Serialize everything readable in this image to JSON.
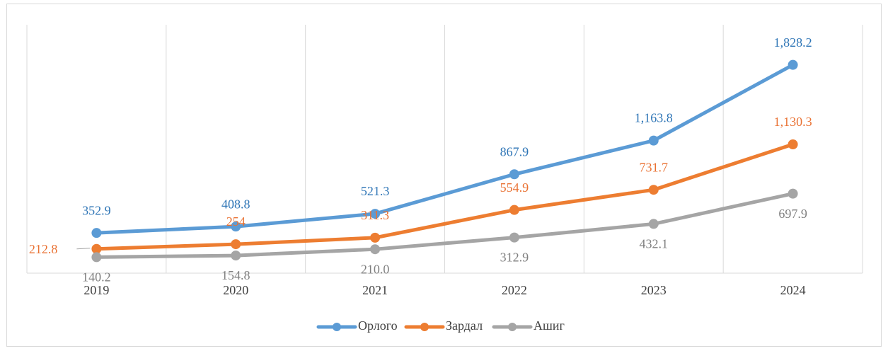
{
  "chart_data": {
    "type": "line",
    "categories": [
      "2019",
      "2020",
      "2021",
      "2022",
      "2023",
      "2024"
    ],
    "series": [
      {
        "name": "Орлого",
        "color": "#5b9bd5",
        "values": [
          352.9,
          408.8,
          521.3,
          867.9,
          1163.8,
          1828.2
        ],
        "value_labels": [
          "352.9",
          "408.8",
          "521.3",
          "867.9",
          "1,163.8",
          "1,828.2"
        ]
      },
      {
        "name": "Зардал",
        "color": "#ed7d31",
        "values": [
          212.8,
          254,
          311.3,
          554.9,
          731.7,
          1130.3
        ],
        "value_labels": [
          "212.8",
          "254",
          "311.3",
          "554.9",
          "731.7",
          "1,130.3"
        ]
      },
      {
        "name": "Ашиг",
        "color": "#a5a5a5",
        "values": [
          140.2,
          154.8,
          210.0,
          312.9,
          432.1,
          697.9
        ],
        "value_labels": [
          "140.2",
          "154.8",
          "210.0",
          "312.9",
          "432.1",
          "697.9"
        ]
      }
    ],
    "ylim": [
      0,
      2180
    ],
    "grid": true,
    "legend": "bottom"
  }
}
